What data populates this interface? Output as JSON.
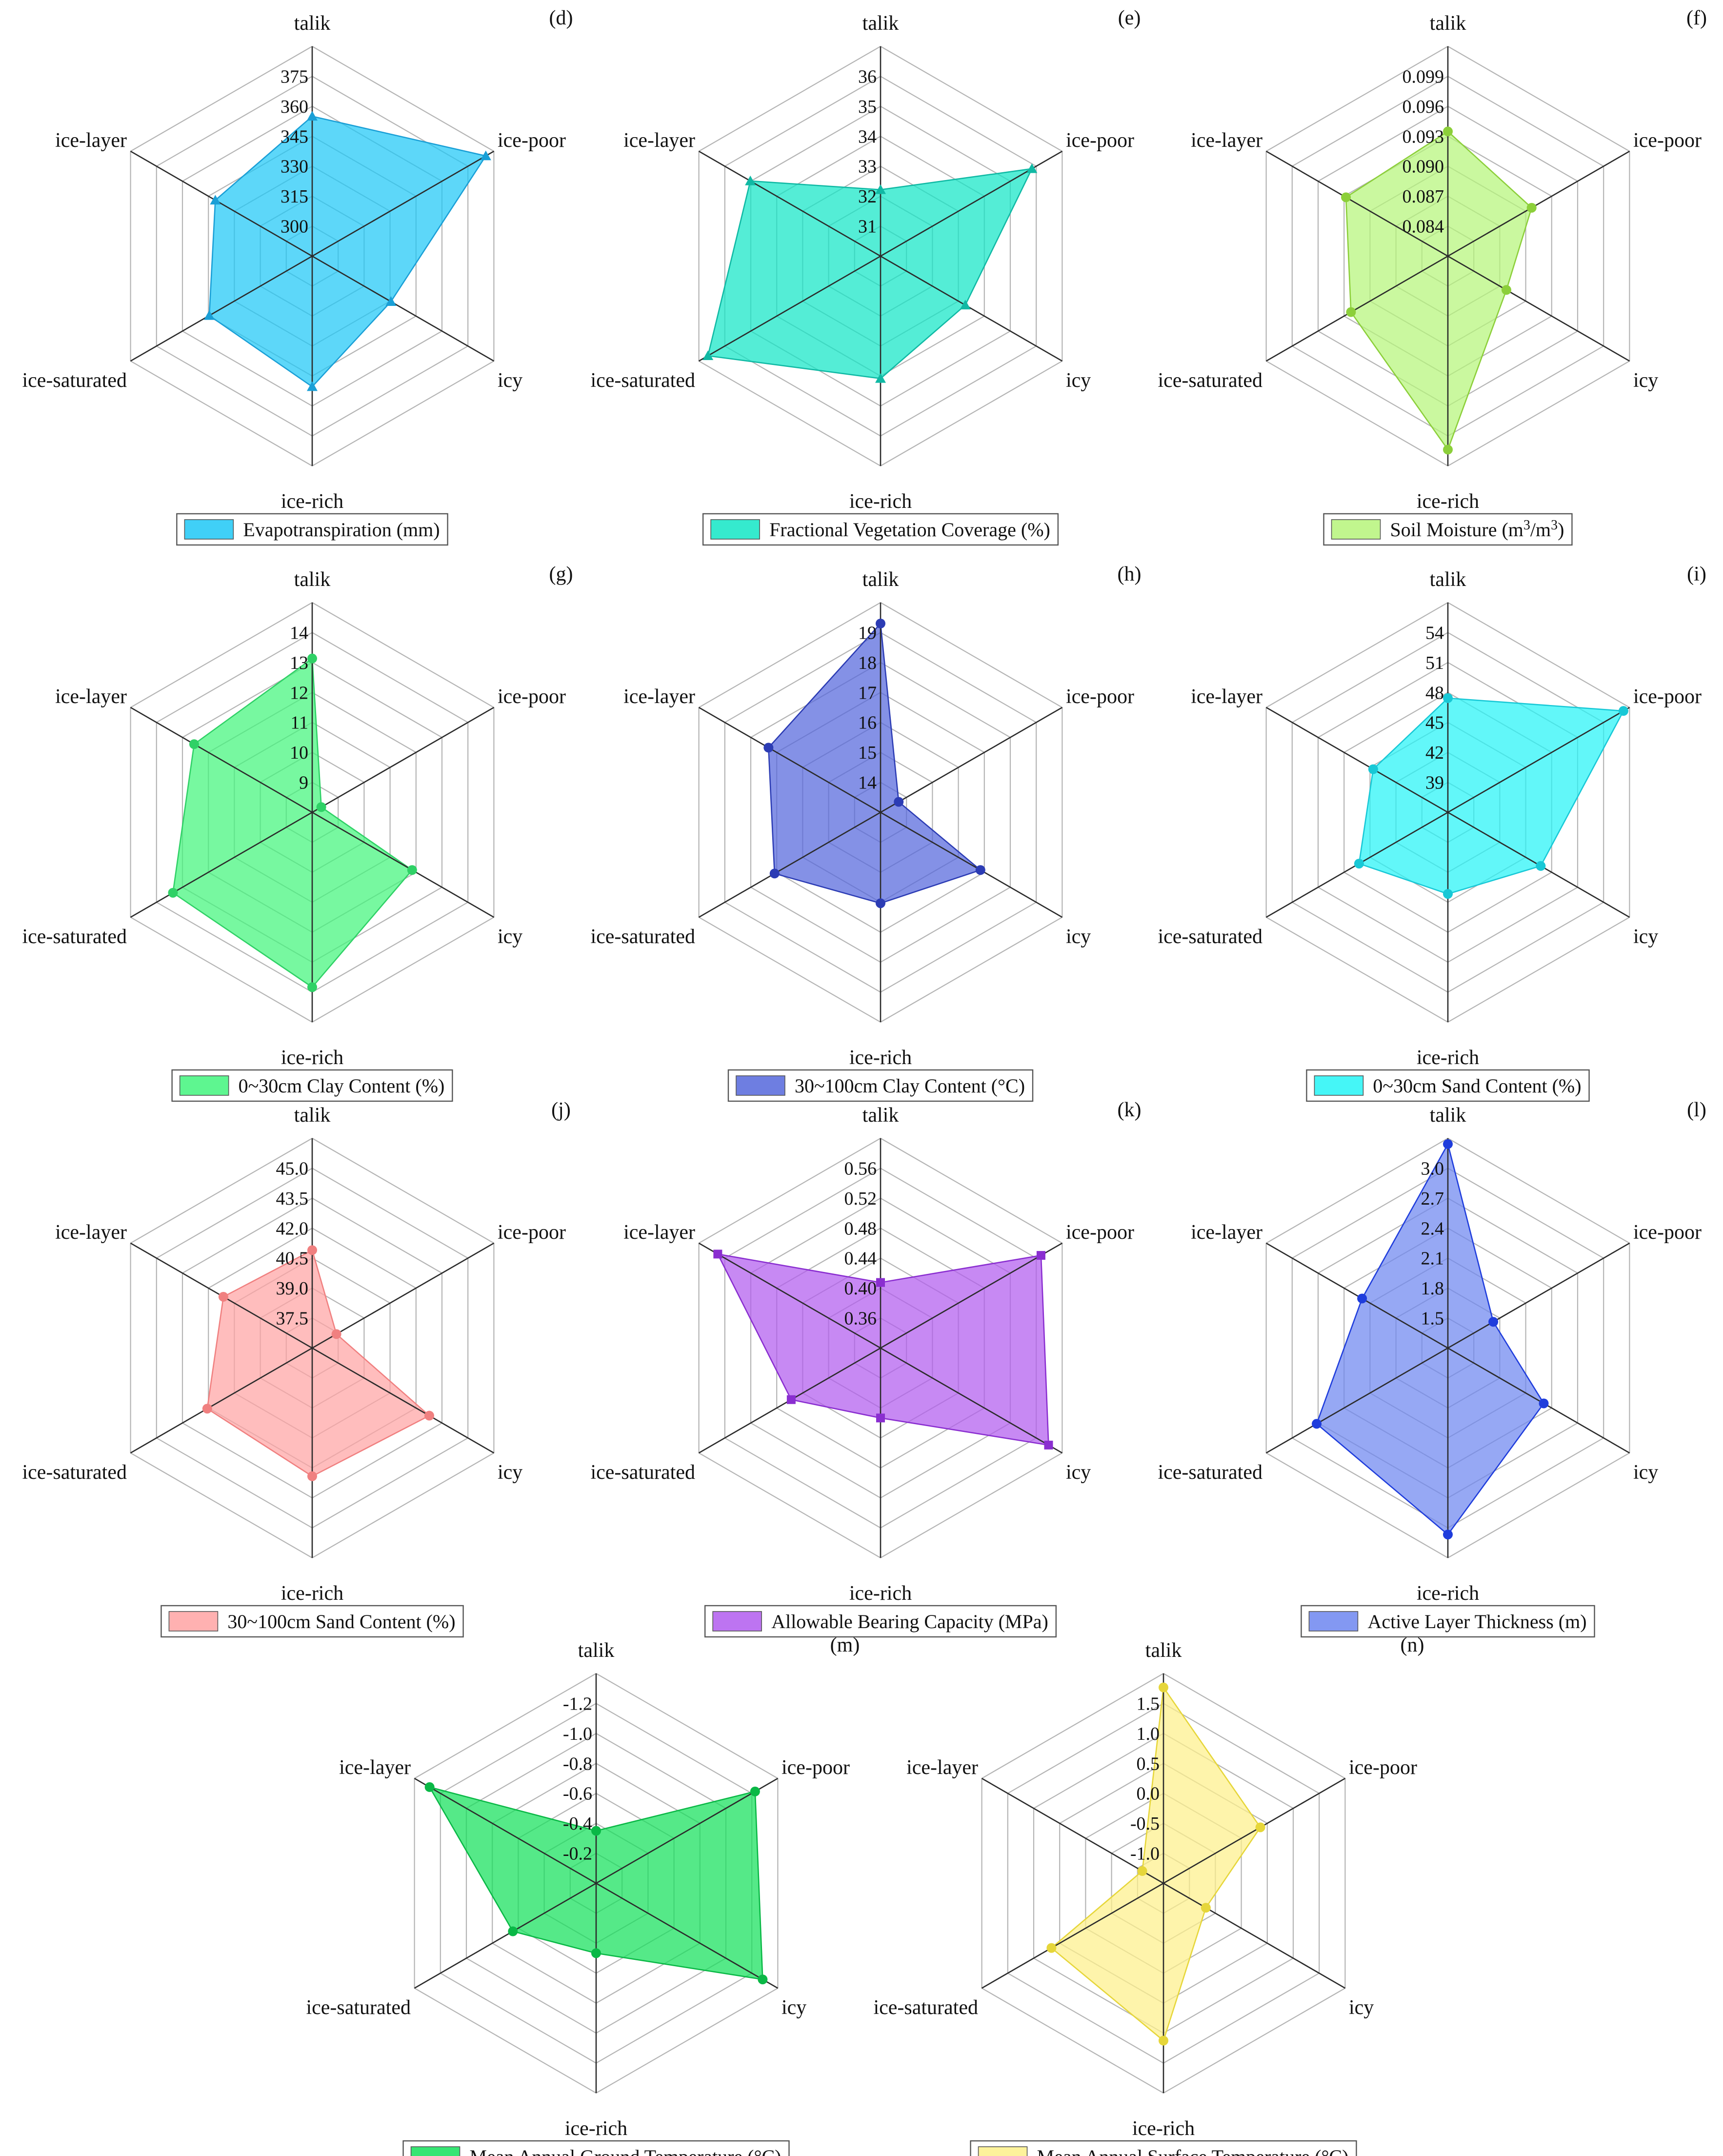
{
  "categories": [
    "talik",
    "ice-poor",
    "icy",
    "ice-rich",
    "ice-saturated",
    "ice-layer"
  ],
  "chart_data": [
    {
      "type": "radar",
      "panel": "(d)",
      "series_name": "Evapotranspiration (mm)",
      "color": "#1ec8f6",
      "line_color": "#1a9fd6",
      "marker": "triangle",
      "ticks": [
        "300",
        "315",
        "330",
        "345",
        "360",
        "375"
      ],
      "range": [
        285,
        375
      ],
      "values": [
        345,
        371,
        324,
        341,
        336,
        333
      ]
    },
    {
      "type": "radar",
      "panel": "(e)",
      "series_name": "Fractional Vegetation Coverage (%)",
      "color": "#12e6c6",
      "line_color": "#10b9a4",
      "marker": "triangle",
      "ticks": [
        "31",
        "32",
        "33",
        "34",
        "35",
        "36"
      ],
      "range": [
        30,
        36
      ],
      "values": [
        31.9,
        35,
        32.8,
        33.5,
        35.7,
        34.3
      ]
    },
    {
      "type": "radar",
      "panel": "(f)",
      "series_name": "Soil Moisture",
      "legend_base": "Soil Moisture (m",
      "legend_sup1": "3",
      "legend_mid": "/m",
      "legend_sup2": ")",
      "color": "#b6f57a",
      "line_color": "#8ccf3a",
      "marker": "circle",
      "ticks": [
        "0.084",
        "0.087",
        "0.090",
        "0.093",
        "0.096",
        "0.099"
      ],
      "range": [
        0.081,
        0.099
      ],
      "values": [
        0.0917,
        0.0893,
        0.0868,
        0.0976,
        0.0906,
        0.0911
      ]
    },
    {
      "type": "radar",
      "panel": "(g)",
      "series_name": "0~30cm Clay Content (%)",
      "color": "#42f57c",
      "line_color": "#2fd166",
      "marker": "circle",
      "ticks": [
        "9",
        "10",
        "11",
        "12",
        "13",
        "14"
      ],
      "range": [
        8,
        14
      ],
      "values": [
        12.4,
        8.3,
        11.3,
        13,
        12.6,
        11.9
      ]
    },
    {
      "type": "radar",
      "panel": "(h)",
      "series_name": "30~100cm Clay Content (°C)",
      "color": "#5567dc",
      "line_color": "#2c3cb4",
      "marker": "circle",
      "ticks": [
        "14",
        "15",
        "16",
        "17",
        "18",
        "19"
      ],
      "range": [
        13,
        19
      ],
      "values": [
        18.4,
        13.6,
        16.3,
        15.6,
        16.5,
        16.7
      ]
    },
    {
      "type": "radar",
      "panel": "(i)",
      "series_name": "0~30cm Sand Content (%)",
      "color": "#25f4f6",
      "line_color": "#18c8d6",
      "marker": "circle",
      "ticks": [
        "39",
        "42",
        "45",
        "48",
        "51",
        "54"
      ],
      "range": [
        36,
        54
      ],
      "values": [
        45.8,
        53.4,
        45.2,
        43,
        44.8,
        43.4
      ]
    },
    {
      "type": "radar",
      "panel": "(j)",
      "series_name": "30~100cm Sand Content (%)",
      "color": "#ffa3a3",
      "line_color": "#f08080",
      "marker": "circle",
      "ticks": [
        "37.5",
        "39.0",
        "40.5",
        "42.0",
        "43.5",
        "45.0"
      ],
      "range": [
        36,
        45
      ],
      "values": [
        40.2,
        37.2,
        41.8,
        41.5,
        41.2,
        40.4
      ]
    },
    {
      "type": "radar",
      "panel": "(k)",
      "series_name": "Allowable Bearing Capacity (MPa)",
      "color": "#b15cee",
      "line_color": "#8a2ed0",
      "marker": "square",
      "ticks": [
        "0.36",
        "0.40",
        "0.44",
        "0.48",
        "0.52",
        "0.56"
      ],
      "range": [
        0.32,
        0.56
      ],
      "values": [
        0.395,
        0.532,
        0.542,
        0.4,
        0.438,
        0.535
      ]
    },
    {
      "type": "radar",
      "panel": "(l)",
      "series_name": "Active Layer Thickness (m)",
      "color": "#6d86f0",
      "line_color": "#1f3ddc",
      "marker": "circle",
      "ticks": [
        "1.5",
        "1.8",
        "2.1",
        "2.4",
        "2.7",
        "3.0"
      ],
      "range": [
        1.2,
        3.0
      ],
      "values": [
        2.95,
        1.65,
        2.15,
        2.8,
        2.5,
        2.05
      ]
    },
    {
      "type": "radar",
      "panel": "(m)",
      "series_name": "Mean Annual Ground Temperature (°C)",
      "color": "#14e05a",
      "line_color": "#0ab846",
      "marker": "circle",
      "ticks": [
        "-0.2",
        "-0.4",
        "-0.6",
        "-0.8",
        "-1.0",
        "-1.2"
      ],
      "range": [
        0,
        -1.2
      ],
      "values": [
        -0.3,
        -1.05,
        -1.1,
        -0.4,
        -0.55,
        -1.1
      ]
    },
    {
      "type": "radar",
      "panel": "(n)",
      "series_name": "Mean Annual Surface Temperature (°C)",
      "color": "#fdf08a",
      "line_color": "#e6d63a",
      "marker": "circle",
      "ticks": [
        "-1.0",
        "-0.5",
        "0.0",
        "0.5",
        "1.0",
        "1.5"
      ],
      "range": [
        -1.5,
        1.5
      ],
      "values": [
        1.3,
        0.1,
        -0.8,
        0.75,
        0.35,
        -1.15
      ]
    }
  ]
}
